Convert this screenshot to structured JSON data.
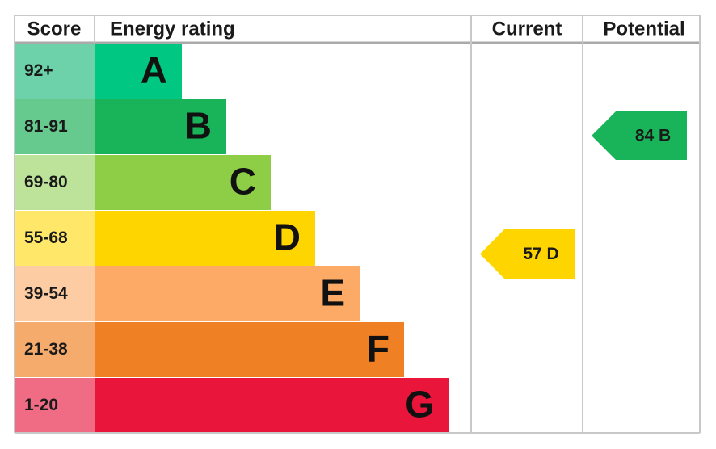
{
  "header": {
    "score": "Score",
    "energy_rating": "Energy rating",
    "current": "Current",
    "potential": "Potential"
  },
  "bands": [
    {
      "score": "92+",
      "letter": "A",
      "color": "#00c781",
      "tint": "#6dd1a9"
    },
    {
      "score": "81-91",
      "letter": "B",
      "color": "#19b459",
      "tint": "#66c98d"
    },
    {
      "score": "69-80",
      "letter": "C",
      "color": "#8dce46",
      "tint": "#bde39a"
    },
    {
      "score": "55-68",
      "letter": "D",
      "color": "#ffd500",
      "tint": "#ffe76a"
    },
    {
      "score": "39-54",
      "letter": "E",
      "color": "#fcaa65",
      "tint": "#fdcca3"
    },
    {
      "score": "21-38",
      "letter": "F",
      "color": "#ef8023",
      "tint": "#f5ab6c"
    },
    {
      "score": "1-20",
      "letter": "G",
      "color": "#e9153b",
      "tint": "#f06b84"
    }
  ],
  "current": {
    "label": "57 D",
    "color": "#ffd500"
  },
  "potential": {
    "label": "84 B",
    "color": "#19b459"
  }
}
